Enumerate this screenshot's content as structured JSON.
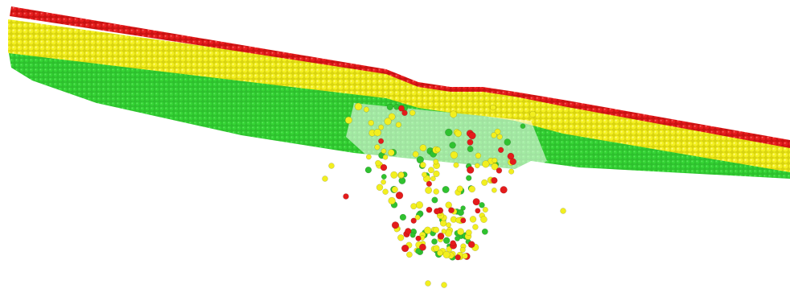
{
  "scene": {
    "description_free": true,
    "colors": {
      "top_layer": "#e41b1b",
      "middle_layer": "#f2ef1f",
      "bottom_layer": "#2fc22f",
      "background": "#ffffff"
    },
    "layers": [
      {
        "name": "red-layer",
        "color": "#e41b1b"
      },
      {
        "name": "yellow-layer",
        "color": "#f2ef1f"
      },
      {
        "name": "green-layer",
        "color": "#2fc22f"
      }
    ],
    "debris_counts": {
      "red": 36,
      "yellow": 120,
      "green": 54
    }
  }
}
